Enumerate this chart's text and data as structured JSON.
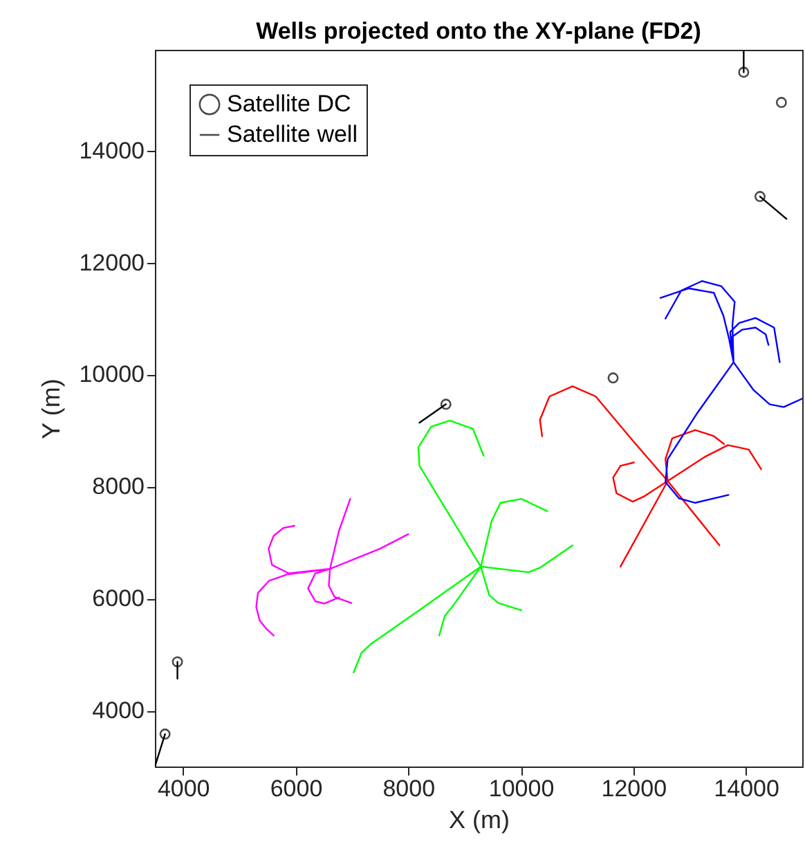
{
  "chart_data": {
    "type": "line",
    "title": "Wells projected onto the XY-plane (FD2)",
    "xlabel": "X (m)",
    "ylabel": "Y (m)",
    "xlim": [
      3500,
      15000
    ],
    "ylim": [
      3000,
      15800
    ],
    "xticks": [
      4000,
      6000,
      8000,
      10000,
      12000,
      14000
    ],
    "yticks": [
      4000,
      6000,
      8000,
      10000,
      12000,
      14000
    ],
    "grid": false,
    "legend": "top left",
    "series": [
      {
        "name": "Satellite DC",
        "type": "scatter",
        "marker": "circle",
        "color": "#000000",
        "x": [
          13960,
          14630,
          14250,
          11640,
          8670,
          3900,
          3680
        ],
        "values": [
          15400,
          14860,
          13180,
          9940,
          9470,
          4870,
          3580
        ]
      },
      {
        "name": "Satellite well",
        "color": "#000000",
        "x": [
          13960,
          13960
        ],
        "values": [
          15400,
          15800
        ]
      },
      {
        "color": "#000000",
        "x": [
          14250,
          14720
        ],
        "values": [
          13180,
          12780
        ]
      },
      {
        "color": "#000000",
        "x": [
          8670,
          8200
        ],
        "values": [
          9470,
          9140
        ]
      },
      {
        "color": "#000000",
        "x": [
          3900,
          3900
        ],
        "values": [
          4870,
          4570
        ]
      },
      {
        "color": "#000000",
        "x": [
          3680,
          3500
        ],
        "values": [
          3580,
          3000
        ]
      },
      {
        "color": "#ff00ff",
        "x": [
          6610,
          6770,
          6970,
          null,
          6610,
          7500,
          8000,
          null,
          6610,
          5850,
          5530,
          5330,
          5300,
          5360,
          5480,
          5610,
          null,
          6610,
          5880,
          5580,
          5520,
          5610,
          5780,
          5980,
          null,
          6610,
          6590,
          6690,
          6990,
          null,
          6610,
          6350,
          6220,
          6350,
          6510,
          6770
        ],
        "values": [
          6530,
          7210,
          7780,
          null,
          6530,
          6890,
          7150,
          null,
          6530,
          6430,
          6320,
          6100,
          5850,
          5610,
          5460,
          5340,
          null,
          6530,
          6450,
          6600,
          6890,
          7120,
          7260,
          7300,
          null,
          6530,
          6230,
          6030,
          5920,
          null,
          6530,
          6450,
          6180,
          5950,
          5910,
          6020
        ]
      },
      {
        "color": "#00ff00",
        "x": [
          9290,
          8200,
          8180,
          8410,
          8740,
          9150,
          9340,
          null,
          9290,
          9480,
          9640,
          10010,
          10470,
          null,
          9290,
          10140,
          10340,
          10920,
          null,
          9290,
          9440,
          9600,
          10010,
          null,
          9290,
          8280,
          7340,
          7170,
          7030,
          null,
          9290,
          8780,
          8650,
          8550
        ],
        "values": [
          6570,
          8370,
          8700,
          9070,
          9180,
          9030,
          8550,
          null,
          6570,
          7380,
          7710,
          7780,
          7560,
          null,
          6570,
          6470,
          6550,
          6950,
          null,
          6570,
          6060,
          5920,
          5790,
          null,
          6570,
          5850,
          5190,
          5030,
          4680,
          null,
          6570,
          5850,
          5690,
          5340
        ]
      },
      {
        "color": "#ff0000",
        "x": [
          12610,
          11990,
          11330,
          10920,
          10510,
          10340,
          10380,
          null,
          12610,
          13530,
          null,
          12610,
          11770,
          null,
          12610,
          12200,
          11990,
          11700,
          11640,
          11770,
          12010,
          null,
          12610,
          12570,
          12690,
          13100,
          13430,
          13610,
          null,
          12610,
          13270,
          13680,
          14050,
          14270
        ],
        "values": [
          8100,
          8820,
          9610,
          9790,
          9610,
          9190,
          8900,
          null,
          8100,
          6950,
          null,
          8100,
          6570,
          null,
          8100,
          7830,
          7730,
          7880,
          8160,
          8370,
          8430,
          null,
          8100,
          8490,
          8860,
          9010,
          8900,
          8760,
          null,
          8100,
          8530,
          8740,
          8660,
          8310
        ]
      },
      {
        "color": "#0000ff",
        "x": [
          13780,
          13140,
          12610,
          12570,
          12810,
          13100,
          13690,
          null,
          13780,
          14130,
          14420,
          14670,
          15000,
          null,
          13780,
          13700,
          13600,
          13430,
          12980,
          12480,
          null,
          13780,
          13760,
          13800,
          13560,
          13220,
          12850,
          12570,
          null,
          13780,
          13720,
          13880,
          14170,
          14500,
          14600,
          null,
          13780,
          13760,
          13930,
          14170,
          14350,
          14400
        ],
        "values": [
          10220,
          9320,
          8490,
          8080,
          7790,
          7710,
          7850,
          null,
          10220,
          9730,
          9470,
          9420,
          9570,
          null,
          10220,
          10640,
          11050,
          11460,
          11540,
          11370,
          null,
          10220,
          10880,
          11300,
          11580,
          11670,
          11500,
          11000,
          null,
          10220,
          10760,
          10920,
          11010,
          10840,
          10220,
          null,
          10220,
          10680,
          10800,
          10840,
          10720,
          10530
        ]
      }
    ]
  }
}
